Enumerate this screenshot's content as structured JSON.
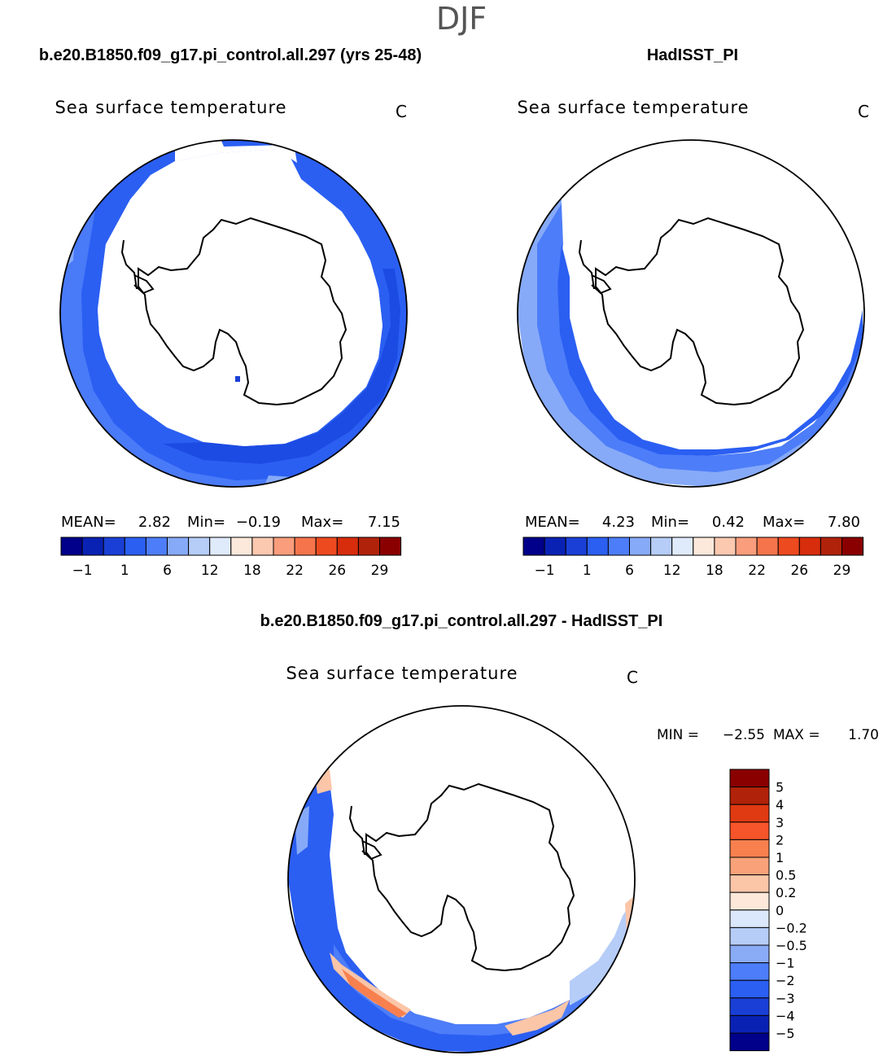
{
  "page": {
    "season": "DJF"
  },
  "panels": [
    {
      "id": "model",
      "case_title": "b.e20.B1850.f09_g17.pi_control.all.297 (yrs 25-48)",
      "variable": "Sea surface temperature",
      "units": "C",
      "stats": {
        "mean_label": "MEAN=",
        "mean": "2.82",
        "min_label": "Min=",
        "min": "−0.19",
        "max_label": "Max=",
        "max": "7.15"
      }
    },
    {
      "id": "obs",
      "case_title": "HadISST_PI",
      "variable": "Sea surface temperature",
      "units": "C",
      "stats": {
        "mean_label": "MEAN=",
        "mean": "4.23",
        "min_label": "Min=",
        "min": "0.42",
        "max_label": "Max=",
        "max": "7.80"
      }
    },
    {
      "id": "diff",
      "case_title": "b.e20.B1850.f09_g17.pi_control.all.297 - HadISST_PI",
      "variable": "Sea surface temperature",
      "units": "C",
      "stats": {
        "min_label": "MIN =",
        "min": "−2.55",
        "max_label": "MAX =",
        "max": "1.70"
      }
    }
  ],
  "sst_colorbar": {
    "colors": [
      "#00008a",
      "#0a22b4",
      "#1a3fd6",
      "#2b5ff2",
      "#4d7df8",
      "#86aaf8",
      "#b6cdf8",
      "#dfeafb",
      "#fde9dc",
      "#fbc8b0",
      "#f99d7c",
      "#f6744b",
      "#ee4a1f",
      "#d72d0c",
      "#b1220a",
      "#8a0000"
    ],
    "tick_labels": [
      "−1",
      "1",
      "6",
      "12",
      "18",
      "22",
      "26",
      "29"
    ]
  },
  "diff_colorbar": {
    "colors_top_to_bottom": [
      "#8a0000",
      "#b1220a",
      "#e03a12",
      "#f6542a",
      "#f8804f",
      "#f9a27a",
      "#fbc5a8",
      "#fde8da",
      "#dbe7fa",
      "#b6cdf8",
      "#8aacf6",
      "#4d7df8",
      "#2b5ff2",
      "#1a3fd6",
      "#0a22b4",
      "#00008a"
    ],
    "tick_labels": [
      "5",
      "4",
      "3",
      "2",
      "1",
      "0.5",
      "0.2",
      "0",
      "−0.2",
      "−0.5",
      "−1",
      "−2",
      "−3",
      "−4",
      "−5"
    ]
  }
}
